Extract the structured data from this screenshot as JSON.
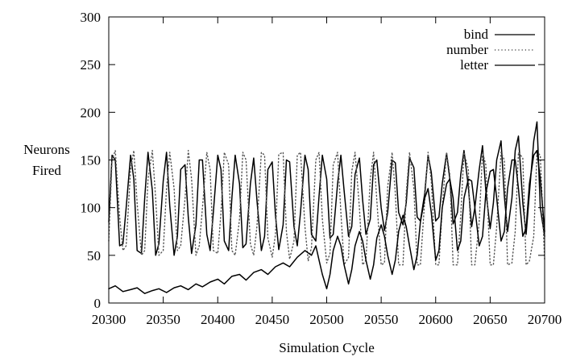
{
  "chart_data": {
    "type": "line",
    "title": "",
    "xlabel": "Simulation Cycle",
    "ylabel_line1": "Neurons",
    "ylabel_line2": "Fired",
    "xlim": [
      20300,
      20700
    ],
    "ylim": [
      0,
      300
    ],
    "grid": false,
    "legend_position": "top-right",
    "xticks": [
      20300,
      20350,
      20400,
      20450,
      20500,
      20550,
      20600,
      20650,
      20700
    ],
    "yticks": [
      0,
      50,
      100,
      150,
      200,
      250,
      300
    ],
    "series": [
      {
        "name": "bind",
        "style": "solid",
        "color": "#000000",
        "x": [
          20300,
          20303,
          20306,
          20310,
          20313,
          20316,
          20320,
          20323,
          20326,
          20330,
          20333,
          20336,
          20340,
          20343,
          20346,
          20350,
          20353,
          20356,
          20360,
          20363,
          20366,
          20370,
          20373,
          20376,
          20380,
          20383,
          20386,
          20390,
          20393,
          20396,
          20400,
          20403,
          20406,
          20410,
          20413,
          20416,
          20420,
          20423,
          20426,
          20430,
          20433,
          20436,
          20440,
          20443,
          20446,
          20450,
          20453,
          20456,
          20460,
          20463,
          20466,
          20470,
          20473,
          20476,
          20480,
          20483,
          20486,
          20490,
          20493,
          20496,
          20500,
          20503,
          20506,
          20510,
          20513,
          20516,
          20520,
          20523,
          20526,
          20530,
          20533,
          20536,
          20540,
          20543,
          20546,
          20550,
          20553,
          20556,
          20560,
          20563,
          20566,
          20570,
          20573,
          20576,
          20580,
          20583,
          20586,
          20590,
          20593,
          20596,
          20600,
          20603,
          20606,
          20610,
          20613,
          20616,
          20620,
          20623,
          20626,
          20630,
          20633,
          20636,
          20640,
          20643,
          20646,
          20650,
          20653,
          20656,
          20660,
          20663,
          20666,
          20670,
          20673,
          20676,
          20680,
          20683,
          20686,
          20690,
          20693,
          20696,
          20700
        ],
        "values": [
          85,
          155,
          150,
          60,
          62,
          100,
          155,
          130,
          55,
          52,
          110,
          158,
          118,
          50,
          62,
          128,
          158,
          102,
          50,
          70,
          140,
          145,
          90,
          52,
          82,
          150,
          150,
          72,
          55,
          95,
          155,
          140,
          65,
          55,
          110,
          155,
          125,
          58,
          62,
          125,
          152,
          108,
          55,
          70,
          140,
          148,
          92,
          56,
          82,
          150,
          148,
          80,
          60,
          95,
          155,
          140,
          72,
          65,
          112,
          155,
          130,
          68,
          72,
          125,
          155,
          118,
          70,
          80,
          135,
          152,
          108,
          72,
          88,
          145,
          150,
          100,
          76,
          95,
          150,
          147,
          95,
          82,
          105,
          152,
          142,
          90,
          86,
          115,
          155,
          137,
          86,
          90,
          125,
          157,
          130,
          83,
          95,
          135,
          160,
          122,
          80,
          100,
          140,
          165,
          118,
          78,
          105,
          150,
          170,
          112,
          75,
          110,
          160,
          175,
          105,
          72,
          115,
          170,
          190,
          100,
          70
        ]
      },
      {
        "name": "number",
        "style": "dotted",
        "color": "#555555",
        "x": [
          20300,
          20303,
          20306,
          20310,
          20313,
          20316,
          20320,
          20323,
          20326,
          20330,
          20333,
          20336,
          20340,
          20343,
          20346,
          20350,
          20353,
          20356,
          20360,
          20363,
          20366,
          20370,
          20373,
          20376,
          20380,
          20383,
          20386,
          20390,
          20393,
          20396,
          20400,
          20403,
          20406,
          20410,
          20413,
          20416,
          20420,
          20423,
          20426,
          20430,
          20433,
          20436,
          20440,
          20443,
          20446,
          20450,
          20453,
          20456,
          20460,
          20463,
          20466,
          20470,
          20473,
          20476,
          20480,
          20483,
          20486,
          20490,
          20493,
          20496,
          20500,
          20503,
          20506,
          20510,
          20513,
          20516,
          20520,
          20523,
          20526,
          20530,
          20533,
          20536,
          20540,
          20543,
          20546,
          20550,
          20553,
          20556,
          20560,
          20563,
          20566,
          20570,
          20573,
          20576,
          20580,
          20583,
          20586,
          20590,
          20593,
          20596,
          20600,
          20603,
          20606,
          20610,
          20613,
          20616,
          20620,
          20623,
          20626,
          20630,
          20633,
          20636,
          20640,
          20643,
          20646,
          20650,
          20653,
          20656,
          20660,
          20663,
          20666,
          20670,
          20673,
          20676,
          20680,
          20683,
          20686,
          20690,
          20693,
          20696,
          20700
        ],
        "values": [
          65,
          150,
          160,
          90,
          55,
          60,
          140,
          160,
          105,
          50,
          55,
          130,
          160,
          110,
          50,
          55,
          120,
          158,
          120,
          55,
          60,
          110,
          160,
          130,
          50,
          60,
          100,
          158,
          140,
          55,
          52,
          95,
          158,
          145,
          55,
          50,
          88,
          158,
          150,
          62,
          50,
          80,
          158,
          155,
          68,
          48,
          72,
          156,
          158,
          75,
          46,
          65,
          155,
          158,
          80,
          44,
          58,
          150,
          158,
          88,
          42,
          52,
          145,
          158,
          95,
          40,
          48,
          138,
          158,
          100,
          40,
          45,
          130,
          158,
          108,
          40,
          42,
          122,
          158,
          115,
          40,
          40,
          115,
          158,
          120,
          40,
          40,
          108,
          158,
          128,
          40,
          40,
          100,
          158,
          135,
          40,
          40,
          92,
          158,
          140,
          40,
          40,
          85,
          158,
          145,
          40,
          40,
          80,
          158,
          150,
          40,
          42,
          75,
          158,
          152,
          40,
          44,
          70,
          158,
          155,
          45
        ]
      },
      {
        "name": "letter",
        "style": "solid",
        "color": "#000000",
        "x": [
          20300,
          20306,
          20313,
          20320,
          20326,
          20333,
          20340,
          20346,
          20353,
          20360,
          20366,
          20373,
          20380,
          20386,
          20393,
          20400,
          20406,
          20413,
          20420,
          20426,
          20433,
          20440,
          20446,
          20453,
          20460,
          20466,
          20473,
          20480,
          20486,
          20490,
          20493,
          20496,
          20500,
          20503,
          20506,
          20510,
          20513,
          20516,
          20520,
          20523,
          20526,
          20530,
          20533,
          20536,
          20540,
          20543,
          20546,
          20550,
          20553,
          20556,
          20560,
          20563,
          20566,
          20570,
          20573,
          20576,
          20580,
          20583,
          20586,
          20590,
          20593,
          20596,
          20600,
          20603,
          20606,
          20610,
          20613,
          20616,
          20620,
          20623,
          20626,
          20630,
          20633,
          20636,
          20640,
          20643,
          20646,
          20650,
          20653,
          20656,
          20660,
          20663,
          20666,
          20670,
          20673,
          20676,
          20680,
          20683,
          20686,
          20690,
          20693,
          20696,
          20700
        ],
        "values": [
          15,
          18,
          12,
          14,
          16,
          10,
          13,
          15,
          11,
          16,
          18,
          14,
          20,
          17,
          22,
          25,
          20,
          28,
          30,
          24,
          32,
          35,
          30,
          38,
          42,
          38,
          48,
          55,
          50,
          60,
          45,
          30,
          15,
          30,
          55,
          70,
          60,
          40,
          20,
          35,
          60,
          75,
          65,
          45,
          25,
          40,
          68,
          82,
          70,
          50,
          30,
          45,
          75,
          92,
          80,
          60,
          35,
          50,
          85,
          110,
          120,
          95,
          45,
          55,
          100,
          125,
          130,
          110,
          55,
          65,
          110,
          130,
          128,
          100,
          60,
          70,
          115,
          138,
          140,
          110,
          65,
          75,
          120,
          150,
          150,
          120,
          70,
          78,
          125,
          155,
          160,
          130,
          75
        ]
      }
    ]
  }
}
